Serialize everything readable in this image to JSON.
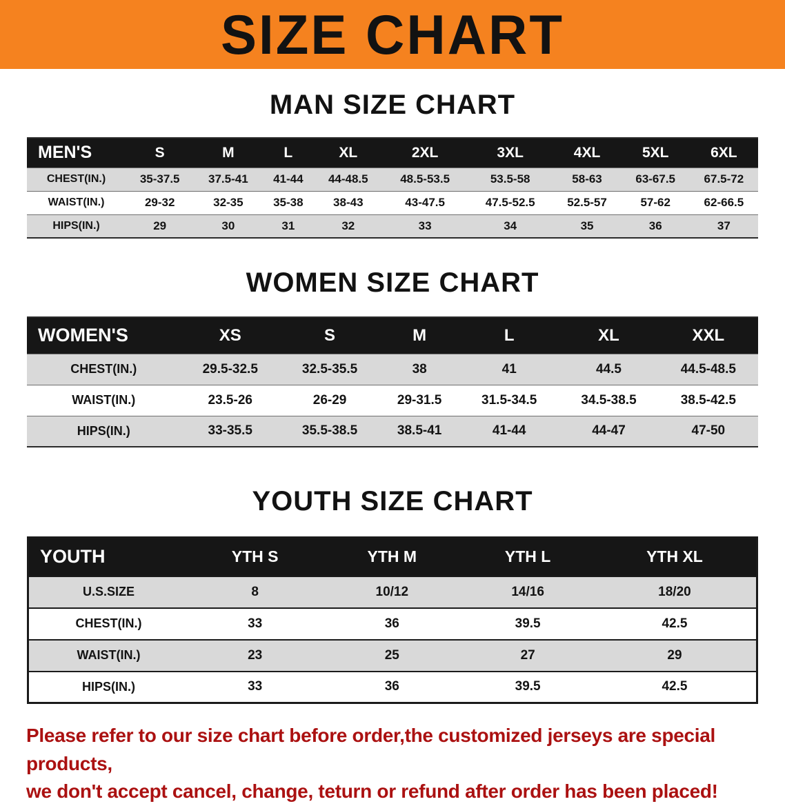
{
  "colors": {
    "banner_bg": "#f5821f",
    "header_bg": "#161616",
    "row_alt": "#d9d9d9",
    "notice_red": "#ab1111",
    "text": "#121212"
  },
  "banner": {
    "title": "SIZE CHART"
  },
  "sections": [
    {
      "heading": "MAN SIZE CHART",
      "table": {
        "header": [
          "MEN'S",
          "S",
          "M",
          "L",
          "XL",
          "2XL",
          "3XL",
          "4XL",
          "5XL",
          "6XL"
        ],
        "rows": [
          [
            "CHEST(IN.)",
            "35-37.5",
            "37.5-41",
            "41-44",
            "44-48.5",
            "48.5-53.5",
            "53.5-58",
            "58-63",
            "63-67.5",
            "67.5-72"
          ],
          [
            "WAIST(IN.)",
            "29-32",
            "32-35",
            "35-38",
            "38-43",
            "43-47.5",
            "47.5-52.5",
            "52.5-57",
            "57-62",
            "62-66.5"
          ],
          [
            "HIPS(IN.)",
            "29",
            "30",
            "31",
            "32",
            "33",
            "34",
            "35",
            "36",
            "37"
          ]
        ]
      }
    },
    {
      "heading": "WOMEN SIZE CHART",
      "table": {
        "header": [
          "WOMEN'S",
          "XS",
          "S",
          "M",
          "L",
          "XL",
          "XXL"
        ],
        "rows": [
          [
            "CHEST(IN.)",
            "29.5-32.5",
            "32.5-35.5",
            "38",
            "41",
            "44.5",
            "44.5-48.5"
          ],
          [
            "WAIST(IN.)",
            "23.5-26",
            "26-29",
            "29-31.5",
            "31.5-34.5",
            "34.5-38.5",
            "38.5-42.5"
          ],
          [
            "HIPS(IN.)",
            "33-35.5",
            "35.5-38.5",
            "38.5-41",
            "41-44",
            "44-47",
            "47-50"
          ]
        ]
      }
    },
    {
      "heading": "YOUTH SIZE CHART",
      "table": {
        "header": [
          "YOUTH",
          "YTH S",
          "YTH M",
          "YTH L",
          "YTH XL"
        ],
        "rows": [
          [
            "U.S.SIZE",
            "8",
            "10/12",
            "14/16",
            "18/20"
          ],
          [
            "CHEST(IN.)",
            "33",
            "36",
            "39.5",
            "42.5"
          ],
          [
            "WAIST(IN.)",
            "23",
            "25",
            "27",
            "29"
          ],
          [
            "HIPS(IN.)",
            "33",
            "36",
            "39.5",
            "42.5"
          ]
        ]
      }
    }
  ],
  "footer": {
    "line1": "Please refer to our size chart before order,the customized jerseys are special products,",
    "line2": "we don't accept cancel, change, teturn or refund after order has been placed!"
  }
}
